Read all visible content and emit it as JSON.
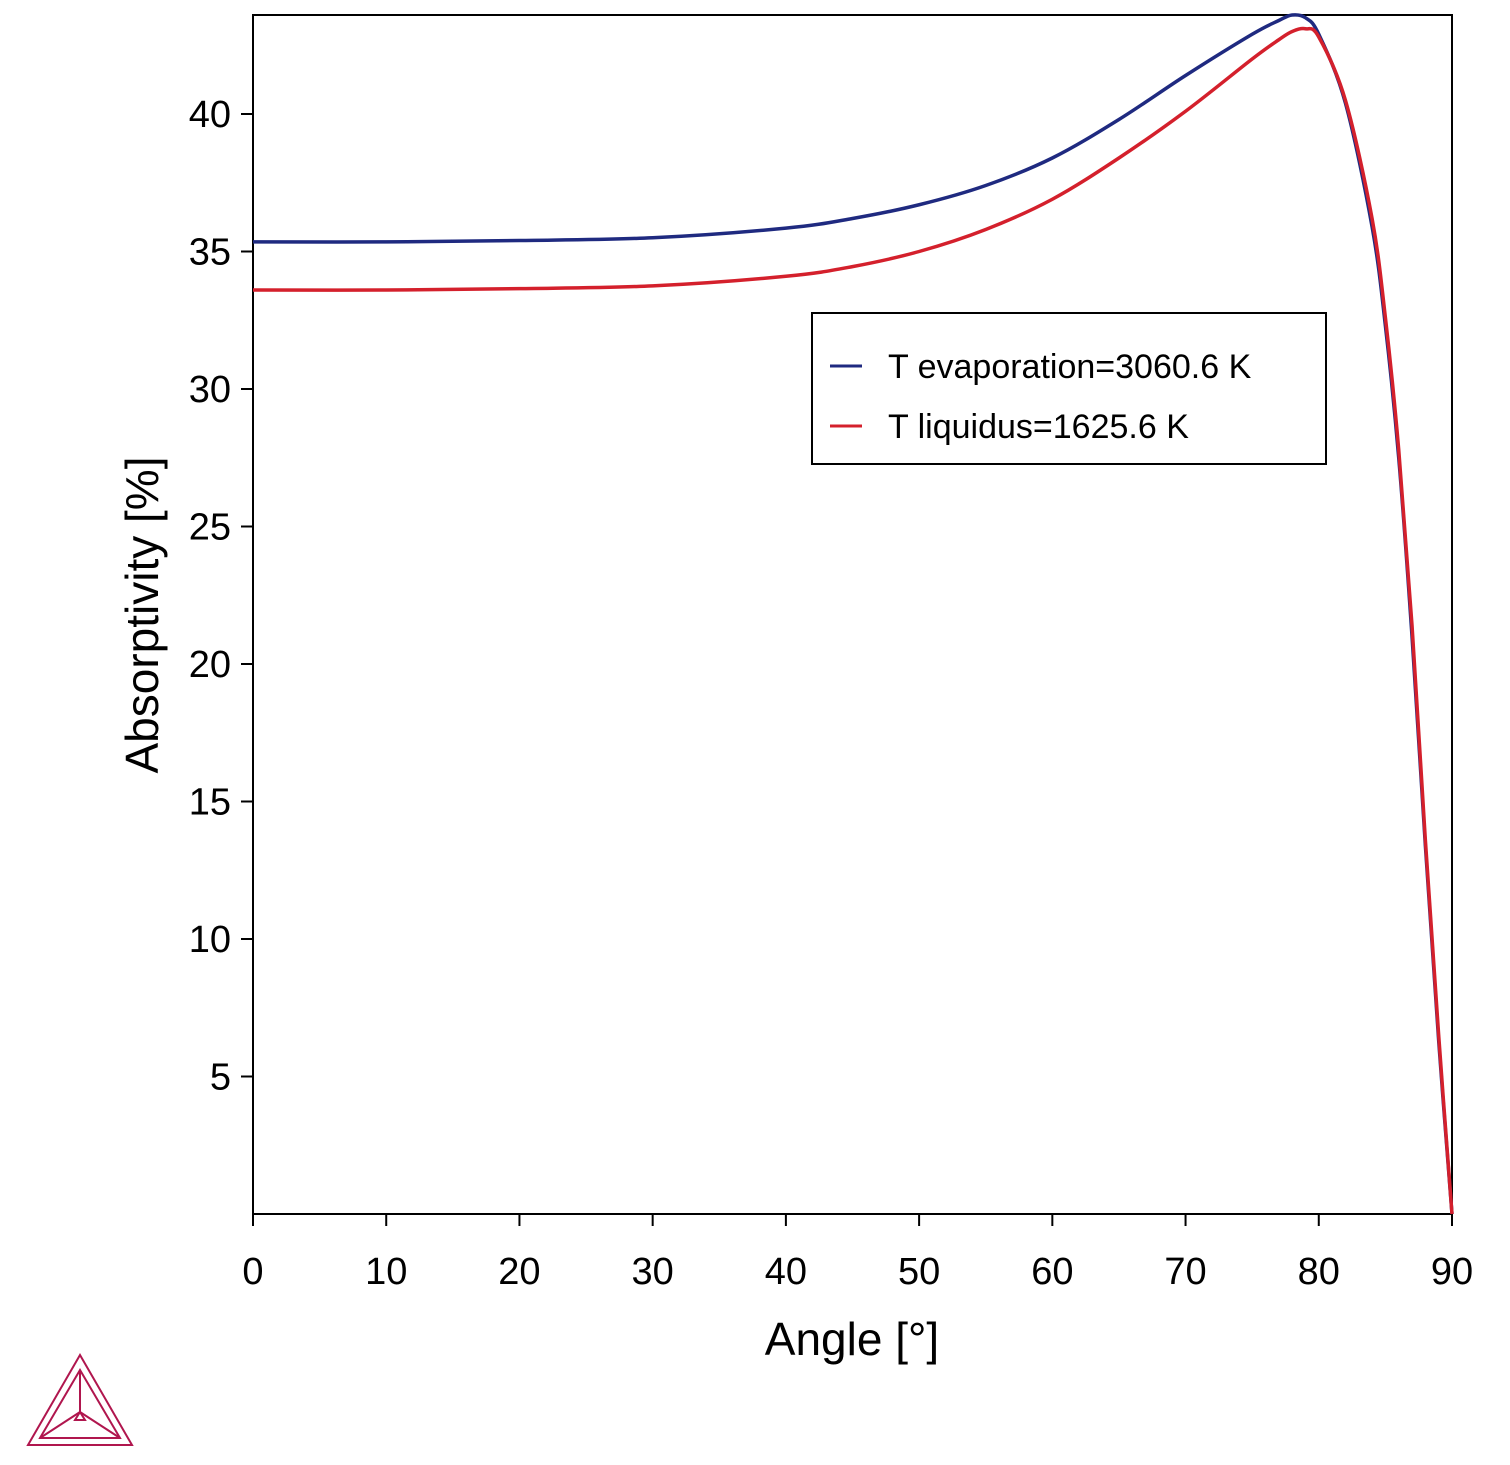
{
  "chart_data": {
    "type": "line",
    "xlabel": "Angle [°]",
    "ylabel": "Absorptivity [%]",
    "xlim": [
      0,
      90
    ],
    "ylim": [
      0,
      43.6
    ],
    "xticks": [
      0,
      10,
      20,
      30,
      40,
      50,
      60,
      70,
      80,
      90
    ],
    "yticks": [
      5,
      10,
      15,
      20,
      25,
      30,
      35,
      40
    ],
    "grid": false,
    "legend_position": "upper-right",
    "series": [
      {
        "name": "T evaporation=3060.6 K",
        "color": "#1f2a80",
        "x": [
          0,
          10,
          20,
          30,
          40,
          45,
          50,
          55,
          60,
          65,
          70,
          75,
          77,
          78,
          79,
          80,
          82,
          84,
          85,
          86,
          87,
          88,
          89,
          90
        ],
        "y": [
          35.35,
          35.35,
          35.4,
          35.5,
          35.85,
          36.2,
          36.7,
          37.4,
          38.4,
          39.8,
          41.4,
          42.9,
          43.4,
          43.6,
          43.5,
          42.9,
          40.4,
          35.9,
          32.3,
          27.5,
          21.0,
          13.4,
          6.3,
          0
        ]
      },
      {
        "name": "T liquidus=1625.6 K",
        "color": "#d4202c",
        "x": [
          0,
          10,
          20,
          30,
          40,
          45,
          50,
          55,
          60,
          65,
          70,
          75,
          77,
          78,
          79,
          80,
          82,
          84,
          85,
          86,
          87,
          88,
          89,
          90
        ],
        "y": [
          33.6,
          33.6,
          33.65,
          33.75,
          34.1,
          34.45,
          35.0,
          35.8,
          36.9,
          38.4,
          40.1,
          42.0,
          42.7,
          43.0,
          43.1,
          42.8,
          40.5,
          36.2,
          32.6,
          27.8,
          21.4,
          13.6,
          6.5,
          0
        ]
      }
    ]
  },
  "logo": {
    "name": "triangle-logo-icon",
    "color": "#b0164e"
  }
}
